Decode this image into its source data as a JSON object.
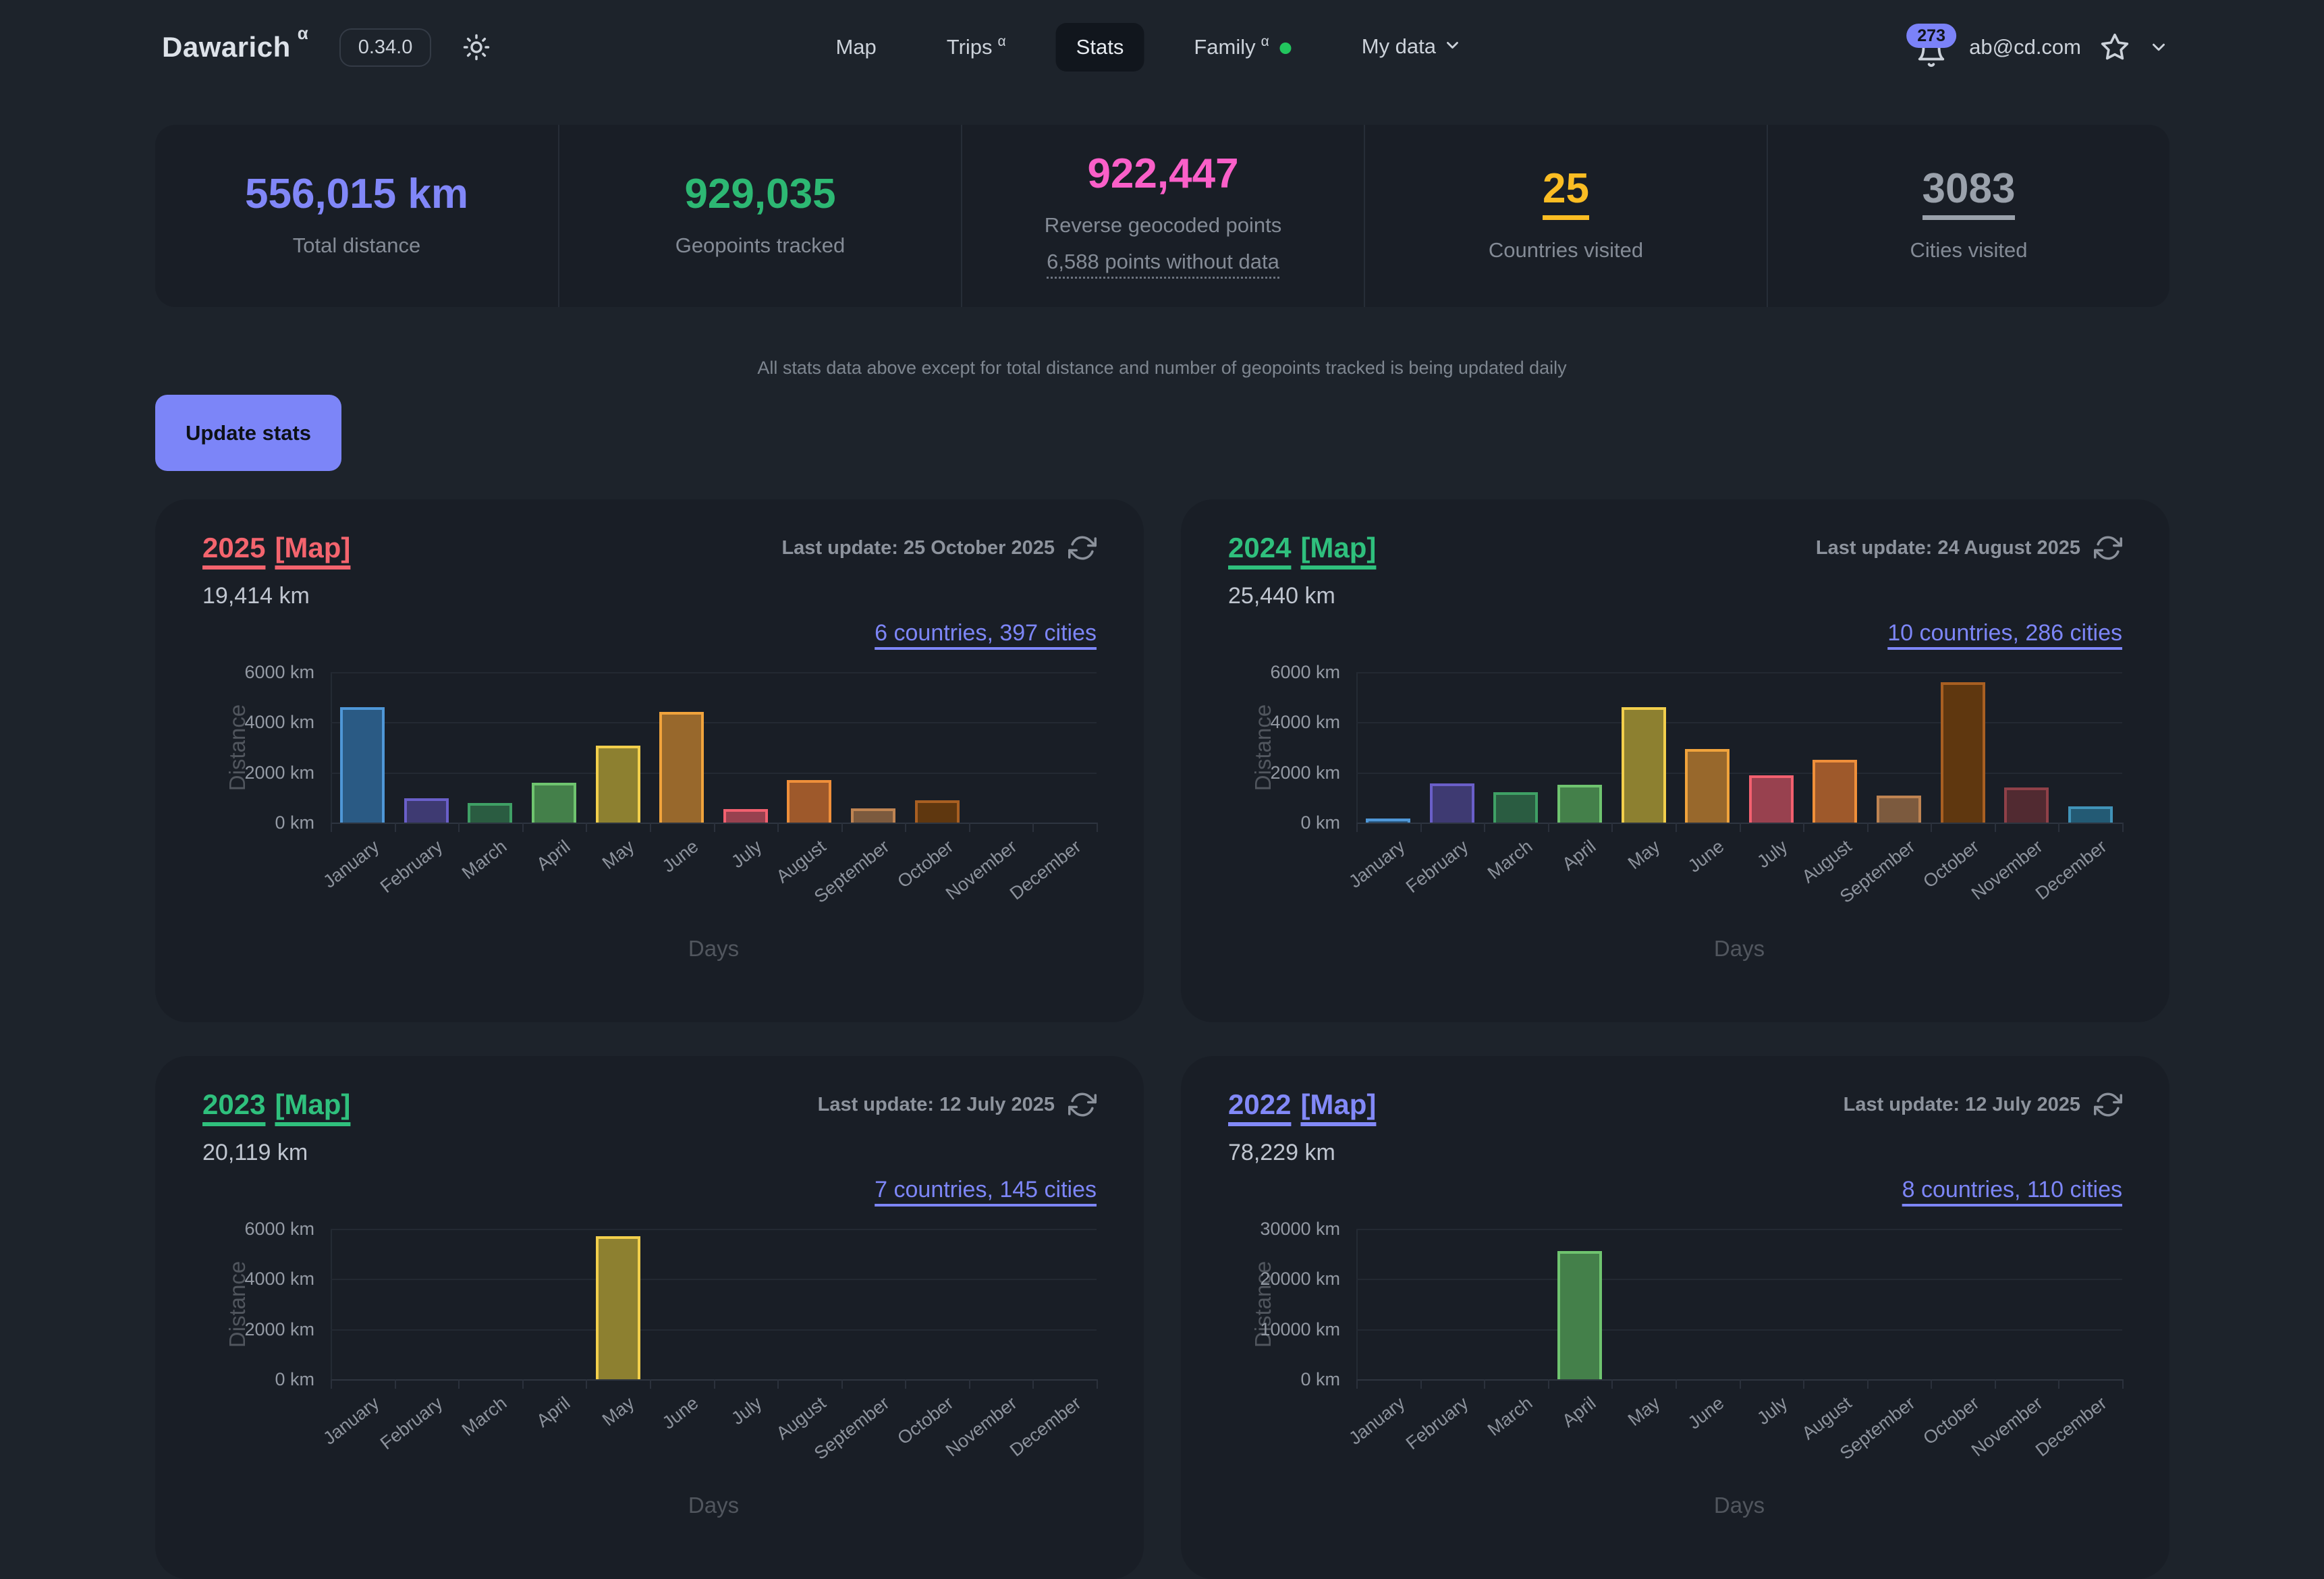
{
  "colors": {
    "page_bg": "#1d232b",
    "panel_bg": "#191e26",
    "accent_indigo": "#7d86f8",
    "badge_bg": "#7b82f8",
    "family_dot": "#22c55e"
  },
  "header": {
    "app_name": "Dawarich",
    "app_sup": "α",
    "version": "0.34.0",
    "nav": [
      {
        "label": "Map"
      },
      {
        "label": "Trips",
        "sup": "α"
      },
      {
        "label": "Stats"
      },
      {
        "label": "Family",
        "sup": "α"
      },
      {
        "label": "My data"
      }
    ],
    "notification_count": "273",
    "email": "ab@cd.com"
  },
  "summary_stats": [
    {
      "value": "556,015 km",
      "label": "Total distance",
      "color": "#8187f8"
    },
    {
      "value": "929,035",
      "label": "Geopoints tracked",
      "color": "#2db873"
    },
    {
      "value": "922,447",
      "label": "Reverse geocoded points",
      "sub_link": "6,588 points without data",
      "color": "#fa5fc8"
    },
    {
      "value": "25",
      "label": "Countries visited",
      "color": "#fbbd23"
    },
    {
      "value": "3083",
      "label": "Cities visited",
      "color": "#9aa1ab"
    }
  ],
  "note": "All stats data above except for total distance and number of geopoints tracked is being updated daily",
  "update_button": "Update stats",
  "cards": [
    {
      "year": "2025",
      "map_link": "[Map]",
      "accent": "#f4646e",
      "last_update": "Last update: 25 October 2025",
      "distance": "19,414 km",
      "cities_link": "6 countries, 397 cities"
    },
    {
      "year": "2024",
      "map_link": "[Map]",
      "accent": "#2fc07d",
      "last_update": "Last update: 24 August 2025",
      "distance": "25,440 km",
      "cities_link": "10 countries, 286 cities"
    },
    {
      "year": "2023",
      "map_link": "[Map]",
      "accent": "#2fc07d",
      "last_update": "Last update: 12 July 2025",
      "distance": "20,119 km",
      "cities_link": "7 countries, 145 cities"
    },
    {
      "year": "2022",
      "map_link": "[Map]",
      "accent": "#8289f8",
      "last_update": "Last update: 12 July 2025",
      "distance": "78,229 km",
      "cities_link": "8 countries, 110 cities"
    }
  ],
  "month_palette": {
    "borders": [
      "#4f97d7",
      "#6a5fc9",
      "#3fa065",
      "#6fc46f",
      "#f2cf4c",
      "#f0a33c",
      "#f2606f",
      "#ef8f3a",
      "#bf8452",
      "#a85f22",
      "#8f4048",
      "#4193b8"
    ],
    "fills": [
      "#2a5a84",
      "#3e3a72",
      "#2a5c41",
      "#44804a",
      "#8d8030",
      "#98682c",
      "#98414f",
      "#9e592b",
      "#7c5a3e",
      "#5f370f",
      "#512a31",
      "#235a74"
    ]
  },
  "chart_data": [
    {
      "type": "bar",
      "title": "2025",
      "categories": [
        "January",
        "February",
        "March",
        "April",
        "May",
        "June",
        "July",
        "August",
        "September",
        "October",
        "November",
        "December"
      ],
      "values": [
        4600,
        970,
        780,
        1590,
        3080,
        4420,
        530,
        1690,
        560,
        900,
        0,
        0
      ],
      "ymax": 6000,
      "y_ticks": [
        "6000 km",
        "4000 km",
        "2000 km",
        "0 km"
      ],
      "ylabel": "Distance",
      "xlabel": "Days"
    },
    {
      "type": "bar",
      "title": "2024",
      "categories": [
        "January",
        "February",
        "March",
        "April",
        "May",
        "June",
        "July",
        "August",
        "September",
        "October",
        "November",
        "December"
      ],
      "values": [
        130,
        1550,
        1200,
        1520,
        4610,
        2930,
        1890,
        2500,
        1070,
        5600,
        1390,
        640
      ],
      "ymax": 6000,
      "y_ticks": [
        "6000 km",
        "4000 km",
        "2000 km",
        "0 km"
      ],
      "ylabel": "Distance",
      "xlabel": "Days"
    },
    {
      "type": "bar",
      "title": "2023",
      "categories": [
        "January",
        "February",
        "March",
        "April",
        "May",
        "June",
        "July",
        "August",
        "September",
        "October",
        "November",
        "December"
      ],
      "values": [
        null,
        null,
        null,
        null,
        5700,
        null,
        null,
        null,
        null,
        null,
        null,
        null
      ],
      "ymax": 6000,
      "y_ticks": [
        "6000 km",
        "4000 km",
        "2000 km",
        "0 km"
      ],
      "ylabel": "Distance",
      "xlabel": "Days"
    },
    {
      "type": "bar",
      "title": "2022",
      "categories": [
        "January",
        "February",
        "March",
        "April",
        "May",
        "June",
        "July",
        "August",
        "September",
        "October",
        "November",
        "December"
      ],
      "values": [
        null,
        null,
        null,
        25500,
        null,
        null,
        null,
        null,
        null,
        null,
        null,
        null
      ],
      "ymax": 30000,
      "y_ticks": [
        "30000 km",
        "20000 km",
        "10000 km",
        "0 km"
      ],
      "ylabel": "Distance",
      "xlabel": "Days"
    }
  ]
}
